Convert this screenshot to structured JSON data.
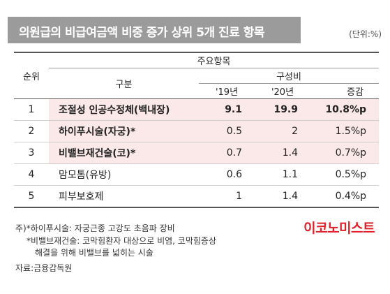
{
  "title": "의원급의 비급여금액 비중 증가 상위 5개 진료 항목",
  "unit": "(단위:%)",
  "table": {
    "header_rank": "순위",
    "header_item": "구분",
    "header_group": "주요항목",
    "header_share": "구성비",
    "col_2019": "'19년",
    "col_2020": "'20년",
    "col_change": "증감",
    "rows": [
      {
        "rank": "1",
        "name": "조절성 인공수정체(백내장)",
        "y2019": "9.1",
        "y2020": "19.9",
        "change": "10.8%p"
      },
      {
        "rank": "2",
        "name": "하이푸시술(자궁)*",
        "y2019": "0.5",
        "y2020": "2",
        "change": "1.5%p"
      },
      {
        "rank": "3",
        "name": "비밸브재건술(코)*",
        "y2019": "0.7",
        "y2020": "1.4",
        "change": "0.7%p"
      },
      {
        "rank": "4",
        "name": "맘모톰(유방)",
        "y2019": "0.6",
        "y2020": "1.1",
        "change": "0.5%p"
      },
      {
        "rank": "5",
        "name": "피부보호제",
        "y2019": "1",
        "y2020": "1.4",
        "change": "0.4%p"
      }
    ]
  },
  "notes": {
    "line1": "주)*하이푸시술: 자궁근종 고강도 초음파 장비",
    "line2": "*비밸브재건술: 코막힘환자 대상으로 비염, 코막힘증상",
    "line3": "해결을 위해 비밸브를 넓히는 시술",
    "source": "자료:금융감독원"
  },
  "logo": "이코노미스트",
  "colors": {
    "title_bg": "#9b9b9b",
    "highlight": "#fbe9ea",
    "logo": "#e0202a"
  }
}
